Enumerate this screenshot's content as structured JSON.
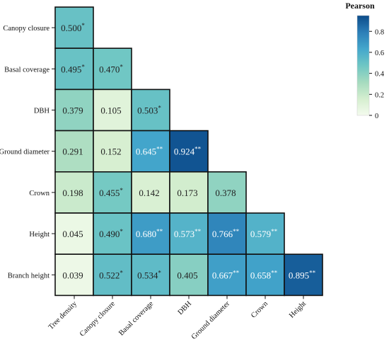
{
  "chart_data": {
    "type": "heatmap",
    "title": "",
    "rows": [
      "Canopy closure",
      "Basal coverage",
      "DBH",
      "Ground diameter",
      "Crown",
      "Height",
      "Branch height"
    ],
    "columns": [
      "Tree density",
      "Canopy closure",
      "Basal coverage",
      "DBH",
      "Ground diameter",
      "Crown",
      "Height"
    ],
    "values": [
      [
        0.5
      ],
      [
        0.495,
        0.47
      ],
      [
        0.379,
        0.105,
        0.503
      ],
      [
        0.291,
        0.152,
        0.645,
        0.924
      ],
      [
        0.198,
        0.455,
        0.142,
        0.173,
        0.378
      ],
      [
        0.045,
        0.49,
        0.68,
        0.573,
        0.766,
        0.579
      ],
      [
        0.039,
        0.522,
        0.534,
        0.405,
        0.667,
        0.658,
        0.895
      ]
    ],
    "labels": [
      [
        "0.500"
      ],
      [
        "0.495",
        "0.470"
      ],
      [
        "0.379",
        "0.105",
        "0.503"
      ],
      [
        "0.291",
        "0.152",
        "0.645",
        "0.924"
      ],
      [
        "0.198",
        "0.455",
        "0.142",
        "0.173",
        "0.378"
      ],
      [
        "0.045",
        "0.490",
        "0.680",
        "0.573",
        "0.766",
        "0.579"
      ],
      [
        "0.039",
        "0.522",
        "0.534",
        "0.405",
        "0.667",
        "0.658",
        "0.895"
      ]
    ],
    "significance": [
      [
        "*"
      ],
      [
        "*",
        "*"
      ],
      [
        "",
        "",
        "*"
      ],
      [
        "",
        "",
        "**",
        "**"
      ],
      [
        "",
        "*",
        "",
        "",
        ""
      ],
      [
        "",
        "*",
        "**",
        "**",
        "**",
        "**"
      ],
      [
        "",
        "*",
        "*",
        "",
        "**",
        "**",
        "**"
      ]
    ],
    "colorbar": {
      "title": "Pearson",
      "range": [
        0,
        0.95
      ],
      "ticks": [
        0,
        0.2,
        0.4,
        0.6,
        0.8
      ],
      "tick_labels": [
        "0",
        "0.2",
        "0.4",
        "0.6",
        "0.8"
      ],
      "colors": [
        "#f4fbee",
        "#d6efd0",
        "#a6dbbf",
        "#6ec6c4",
        "#45a8cc",
        "#2c7fb8",
        "#0c4c8a"
      ]
    }
  }
}
